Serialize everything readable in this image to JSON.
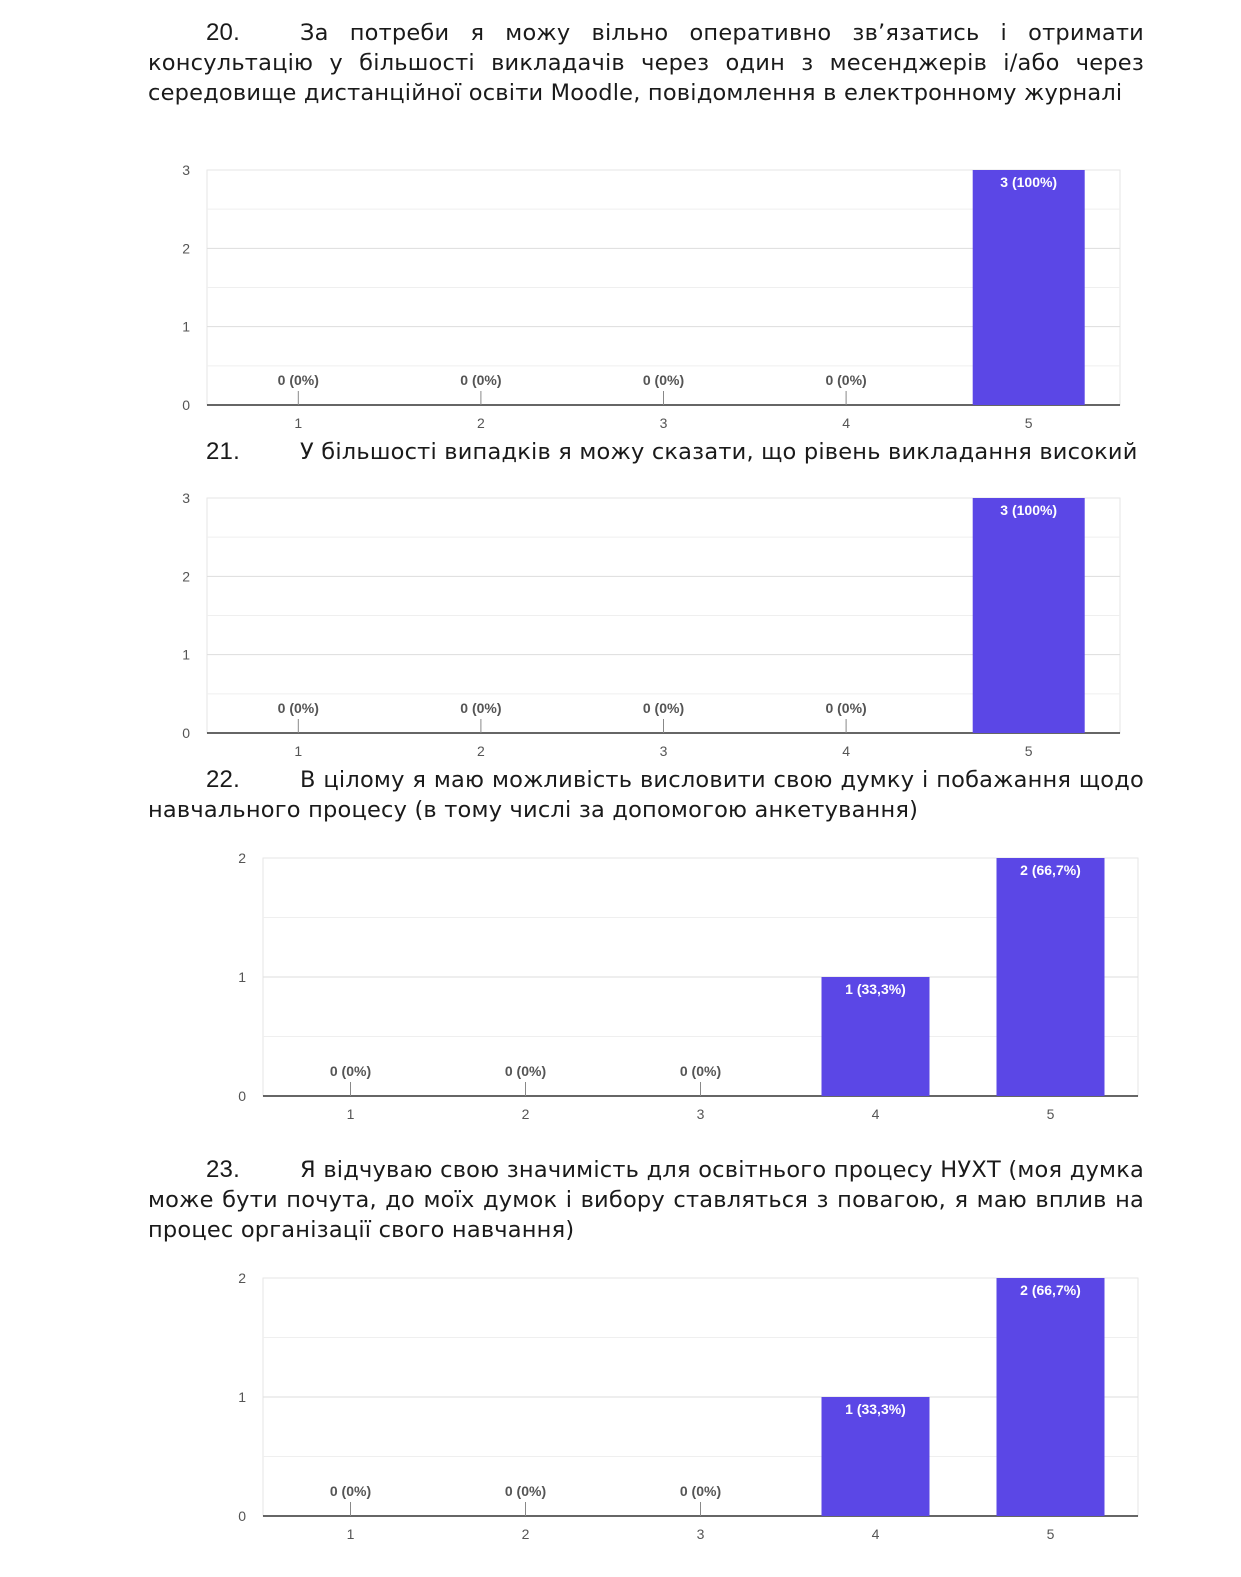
{
  "questions": [
    {
      "number": "20.",
      "text": "За потреби я можу вільно оперативно зв’язатись і отримати консультацію у більшості викладачів через один з месенджерів і/або через середовище дистанційної освіти Moodle, повідомлення в електронному журналі"
    },
    {
      "number": "21.",
      "text": "У більшості випадків я можу сказати, що рівень викладання високий"
    },
    {
      "number": "22.",
      "text": "В цілому я маю можливість висловити свою думку і побажання щодо навчального процесу (в тому числі за допомогою анкетування)"
    },
    {
      "number": "23.",
      "text": "Я відчуваю свою значимість для освітнього процесу НУХТ (моя думка може бути почута, до моїх думок і вибору ставляться з повагою, я маю вплив на процес організації свого навчання)"
    }
  ],
  "colors": {
    "bar": "#5b47e6",
    "grid": "#e6e6e6",
    "axis": "#333333",
    "label": "#555555",
    "bar_label": "#ffffff"
  },
  "chart_data": [
    {
      "type": "bar",
      "categories": [
        "1",
        "2",
        "3",
        "4",
        "5"
      ],
      "values": [
        0,
        0,
        0,
        0,
        3
      ],
      "data_labels": [
        "0 (0%)",
        "0 (0%)",
        "0 (0%)",
        "0 (0%)",
        "3 (100%)"
      ],
      "yticks": [
        0,
        1,
        2,
        3
      ],
      "ylim": [
        0,
        3
      ],
      "grid": true
    },
    {
      "type": "bar",
      "categories": [
        "1",
        "2",
        "3",
        "4",
        "5"
      ],
      "values": [
        0,
        0,
        0,
        0,
        3
      ],
      "data_labels": [
        "0 (0%)",
        "0 (0%)",
        "0 (0%)",
        "0 (0%)",
        "3 (100%)"
      ],
      "yticks": [
        0,
        1,
        2,
        3
      ],
      "ylim": [
        0,
        3
      ],
      "grid": true
    },
    {
      "type": "bar",
      "categories": [
        "1",
        "2",
        "3",
        "4",
        "5"
      ],
      "values": [
        0,
        0,
        0,
        1,
        2
      ],
      "data_labels": [
        "0 (0%)",
        "0 (0%)",
        "0 (0%)",
        "1 (33,3%)",
        "2 (66,7%)"
      ],
      "yticks": [
        0,
        1,
        2
      ],
      "ylim": [
        0,
        2
      ],
      "grid": true
    },
    {
      "type": "bar",
      "categories": [
        "1",
        "2",
        "3",
        "4",
        "5"
      ],
      "values": [
        0,
        0,
        0,
        1,
        2
      ],
      "data_labels": [
        "0 (0%)",
        "0 (0%)",
        "0 (0%)",
        "1 (33,3%)",
        "2 (66,7%)"
      ],
      "yticks": [
        0,
        1,
        2
      ],
      "ylim": [
        0,
        2
      ],
      "grid": true
    }
  ]
}
